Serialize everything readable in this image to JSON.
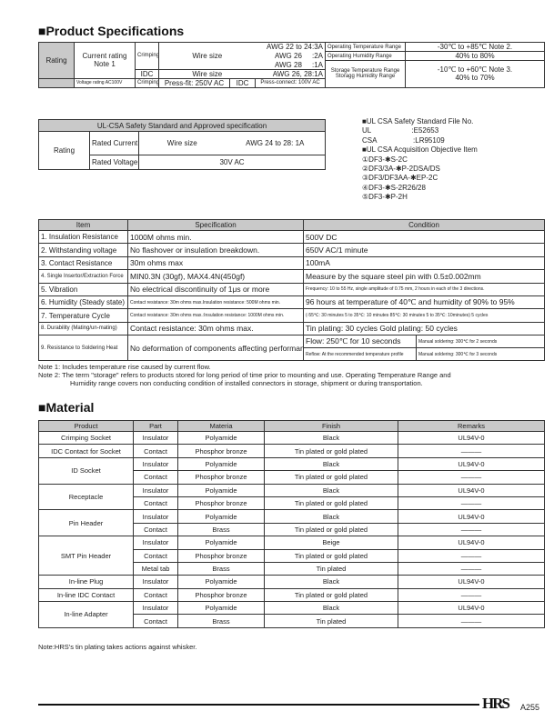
{
  "spec_title": "■Product Specifications",
  "rating": {
    "label": "Rating",
    "current_rating": "Current rating",
    "note1": "Note 1",
    "crimping": "Crimping",
    "wire_size": "Wire size",
    "awg_22_24": "AWG 22 to 24:3A",
    "awg_26": "AWG 26     :2A",
    "awg_28": "AWG 28     :1A",
    "idc": "IDC",
    "idc_wire_size": "Wire size",
    "idc_awg": "AWG 26, 28:1A",
    "voltage_rating": "Voltage rating   AC100V",
    "v_crimping": "Crimping",
    "press_fit": "Press-fit: 250V AC",
    "v_idc": "IDC",
    "press_connect": "Press-connect: 100V AC",
    "op_temp_label": "Operating Temperature Range",
    "op_temp": "-30℃ to +85℃ Note 2.",
    "op_hum_label": "Operating Humidity Range",
    "op_hum": "40% to 80%",
    "st_temp_label": "Storage Temperature Range",
    "st_temp": "-10℃ to +60℃ Note 3.",
    "st_hum_label": "Storagg Humidity Range",
    "st_hum": "40% to 70%"
  },
  "ulcsa": {
    "header": "UL-CSA Safety Standard and Approved specification",
    "rating": "Rating",
    "rated_current": "Rated Current",
    "wire_size": "Wire size",
    "awg": "AWG 24 to 28: 1A",
    "rated_voltage": "Rated Voltage",
    "voltage": "30V AC"
  },
  "ul_info": [
    "■UL CSA Safety Standard File No.",
    "UL                    :E52653",
    "CSA                  :LR95109",
    "■UL CSA Acquisition Objective Item",
    "①DF3-✱S-2C",
    "②DF3/3A-✱P-2DSA/DS",
    "③DF3/DF3AA-✱EP-2C",
    "④DF3-✱S-2R26/28",
    "⑤DF3-✱P-2H"
  ],
  "perf": {
    "headers": [
      "Item",
      "Specification",
      "Condition"
    ],
    "rows": [
      [
        "1. Insulation Resistance",
        "1000M ohms min.",
        "500V DC"
      ],
      [
        "2. Withstanding voltage",
        "No flashover or insulation breakdown.",
        "650V AC/1 minute"
      ],
      [
        "3. Contact Resistance",
        "30m ohms max",
        "100mA"
      ],
      [
        "4. Single Insertor/Extraction Force",
        "MIN0.3N (30gf), MAX4.4N(450gf)",
        "Measure by the square steel pin with 0.5±0.002mm"
      ],
      [
        "5. Vibration",
        "No electrical discontinuity of 1μs or more",
        "Frequency: 10 to 55 Hz, single amplitude of 0.75 mm, 2 hours in each of the 3 directions."
      ],
      [
        "6. Humidity (Steady state)",
        "Contact resistance:  30m ohms max.Insulation resistance: 500M ohms min.",
        "96 hours at temperature of 40℃ and humidity of 90% to 95%"
      ],
      [
        "7. Temperature Cycle",
        "Contact resistance:  30m ohms max.:Insulation resistance: 1000M ohms min.",
        "(-55℃: 30 minutes 5 to 35℃: 10 minutes 85℃: 30 minutes 5 to 35℃: 10minutes) 5 cycles"
      ],
      [
        "8. Durability (Mating/un-mating)",
        "Contact resistance:  30m ohms max.",
        "Tin plating: 30 cycles   Gold plating: 50 cycles"
      ]
    ],
    "row9": {
      "item": "9. Resistance to Soldering Heat",
      "spec": "No deformation of components affecting performance.",
      "flow": "Flow: 250℃ for 10 seconds",
      "manual1": "Manual soldering: 300℃ for 2 seconds",
      "reflow": "Reflow: At the recommended temperature profile",
      "manual2": "Manual soldering: 300℃ for 3 seconds"
    }
  },
  "notes": [
    "Note 1: Includes temperature rise caused by current flow.",
    "Note 2: The term \"storage\" refers to products stored for long period of time prior to mounting and use. Operating Temperature Range and",
    "Humidity range covers non conducting condition of installed connectors in storage, shipment or during transportation."
  ],
  "material_title": "■Material",
  "material": {
    "headers": [
      "Product",
      "Part",
      "Materia",
      "Finish",
      "Remarks"
    ],
    "groups": [
      {
        "product": "Crimping Socket",
        "rows": [
          [
            "Insulator",
            "Polyamide",
            "Black",
            "UL94V-0"
          ]
        ]
      },
      {
        "product": "IDC Contact for Socket",
        "rows": [
          [
            "Contact",
            "Phosphor bronze",
            "Tin plated or gold plated",
            "———"
          ]
        ]
      },
      {
        "product": "ID Socket",
        "rows": [
          [
            "Insulator",
            "Polyamide",
            "Black",
            "UL94V-0"
          ],
          [
            "Contact",
            "Phosphor bronze",
            "Tin plated or gold plated",
            "———"
          ]
        ]
      },
      {
        "product": "Receptacle",
        "rows": [
          [
            "Insulator",
            "Polyamide",
            "Black",
            "UL94V-0"
          ],
          [
            "Contact",
            "Phosphor bronze",
            "Tin plated or gold plated",
            "———"
          ]
        ]
      },
      {
        "product": "Pin Header",
        "rows": [
          [
            "Insulator",
            "Polyamide",
            "Black",
            "UL94V-0"
          ],
          [
            "Contact",
            "Brass",
            "Tin plated or gold plated",
            "———"
          ]
        ]
      },
      {
        "product": "SMT Pin Header",
        "rows": [
          [
            "Insulator",
            "Polyamide",
            "Beige",
            "UL94V-0"
          ],
          [
            "Contact",
            "Phosphor bronze",
            "Tin plated or gold plated",
            "———"
          ],
          [
            "Metal tab",
            "Brass",
            "Tin plated",
            "———"
          ]
        ]
      },
      {
        "product": "In-line Plug",
        "rows": [
          [
            "Insulator",
            "Polyamide",
            "Black",
            "UL94V-0"
          ]
        ]
      },
      {
        "product": "In-line IDC Contact",
        "rows": [
          [
            "Contact",
            "Phosphor bronze",
            "Tin plated or gold plated",
            "———"
          ]
        ]
      },
      {
        "product": "In-line Adapter",
        "rows": [
          [
            "Insulator",
            "Polyamide",
            "Black",
            "UL94V-0"
          ],
          [
            "Contact",
            "Brass",
            "Tin plated",
            "———"
          ]
        ]
      }
    ],
    "note": "Note:HRS's tin plating takes actions against whisker."
  },
  "footer": {
    "logo": "HRS",
    "page": "A255"
  }
}
